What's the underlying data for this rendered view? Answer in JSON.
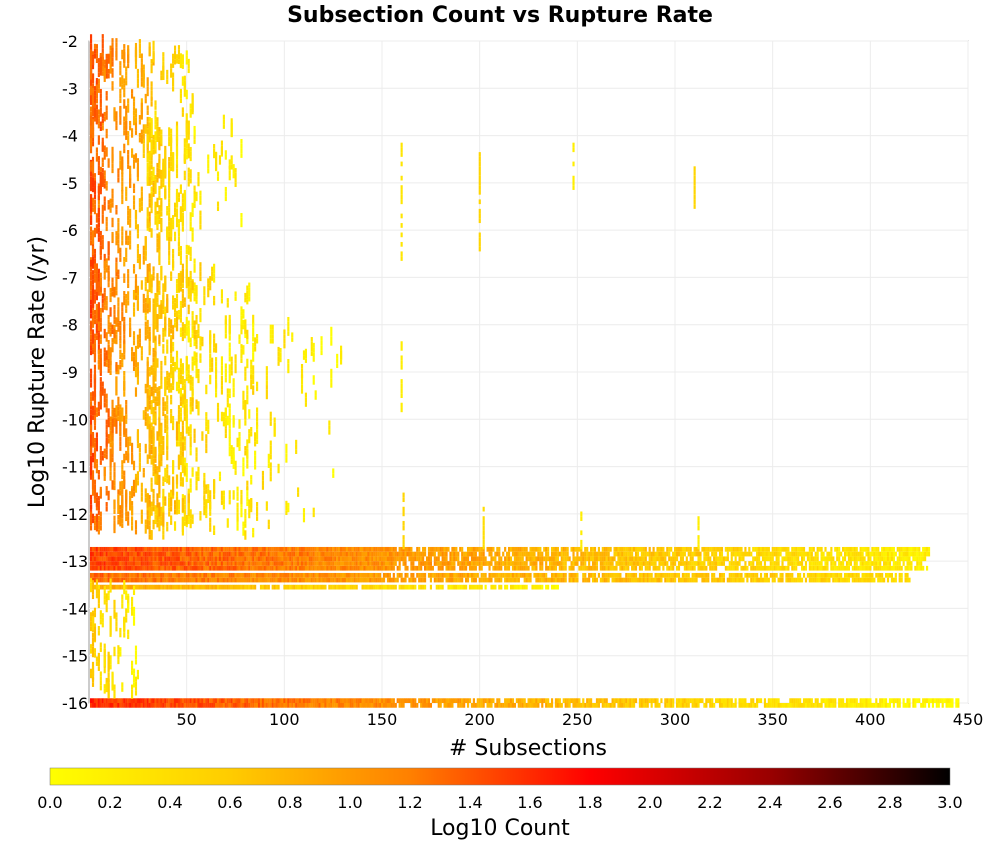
{
  "chart_data": {
    "type": "heatmap",
    "title": "Subsection Count vs Rupture Rate",
    "xlabel": "# Subsections",
    "ylabel": "Log10 Rupture Rate (/yr)",
    "xlim": [
      0,
      450
    ],
    "ylim": [
      -16,
      -2
    ],
    "x_ticks": [
      50,
      100,
      150,
      200,
      250,
      300,
      350,
      400,
      450
    ],
    "y_ticks": [
      -2,
      -3,
      -4,
      -5,
      -6,
      -7,
      -8,
      -9,
      -10,
      -11,
      -12,
      -13,
      -14,
      -15,
      -16
    ],
    "grid": true,
    "colorbar": {
      "label": "Log10 Count",
      "min": 0.0,
      "max": 3.0,
      "ticks": [
        "0.0",
        "0.2",
        "0.4",
        "0.6",
        "0.8",
        "1.0",
        "1.2",
        "1.4",
        "1.6",
        "1.8",
        "2.0",
        "2.2",
        "2.4",
        "2.6",
        "2.8",
        "3.0"
      ],
      "colors": [
        "#ffff00",
        "#ffcc00",
        "#ff8000",
        "#ff0000",
        "#990000",
        "#000000"
      ],
      "placement": "bottom"
    },
    "bands": [
      {
        "x0": 1,
        "x1": 445,
        "y0": -16.1,
        "y1": -15.9,
        "v_start": 1.6,
        "v_end": 0.05
      },
      {
        "x0": 1,
        "x1": 430,
        "y0": -13.2,
        "y1": -12.7,
        "v_start": 1.5,
        "v_end": 0.2
      },
      {
        "x0": 1,
        "x1": 420,
        "y0": -13.45,
        "y1": -13.2,
        "v_start": 1.3,
        "v_end": 0.4
      },
      {
        "x0": 1,
        "x1": 240,
        "y0": -13.6,
        "y1": -13.45,
        "v_start": 0.9,
        "v_end": 0.1
      }
    ],
    "scatter_clusters": [
      {
        "x0": 1,
        "x1": 55,
        "y0": -12.4,
        "y1": -2.2,
        "n": 900,
        "v_start": 1.4,
        "v_end": 0.2
      },
      {
        "x0": 30,
        "x1": 85,
        "y0": -12.5,
        "y1": -7,
        "n": 300,
        "v_start": 0.8,
        "v_end": 0.1
      },
      {
        "x0": 30,
        "x1": 80,
        "y0": -6,
        "y1": -3.8,
        "n": 90,
        "v_start": 0.5,
        "v_end": 0.1
      },
      {
        "x0": 80,
        "x1": 130,
        "y0": -12.5,
        "y1": -8,
        "n": 70,
        "v_start": 0.4,
        "v_end": 0.05
      },
      {
        "x0": 1,
        "x1": 25,
        "y0": -15.9,
        "y1": -13.6,
        "n": 80,
        "v_start": 0.6,
        "v_end": 0.1
      }
    ],
    "columns": [
      {
        "x": 160,
        "y0": -4.2,
        "y1": -6.6,
        "v": 0.3
      },
      {
        "x": 160,
        "y0": -8.4,
        "y1": -9.8,
        "v": 0.2
      },
      {
        "x": 161,
        "y0": -11.6,
        "y1": -12.7,
        "v": 0.5
      },
      {
        "x": 200,
        "y0": -4.4,
        "y1": -6.4,
        "v": 0.5
      },
      {
        "x": 202,
        "y0": -11.9,
        "y1": -12.7,
        "v": 0.4
      },
      {
        "x": 248,
        "y0": -4.2,
        "y1": -5.2,
        "v": 0.2
      },
      {
        "x": 252,
        "y0": -12.0,
        "y1": -12.7,
        "v": 0.2
      },
      {
        "x": 310,
        "y0": -4.7,
        "y1": -5.5,
        "v": 0.5
      },
      {
        "x": 312,
        "y0": -12.1,
        "y1": -12.7,
        "v": 0.2
      }
    ]
  }
}
